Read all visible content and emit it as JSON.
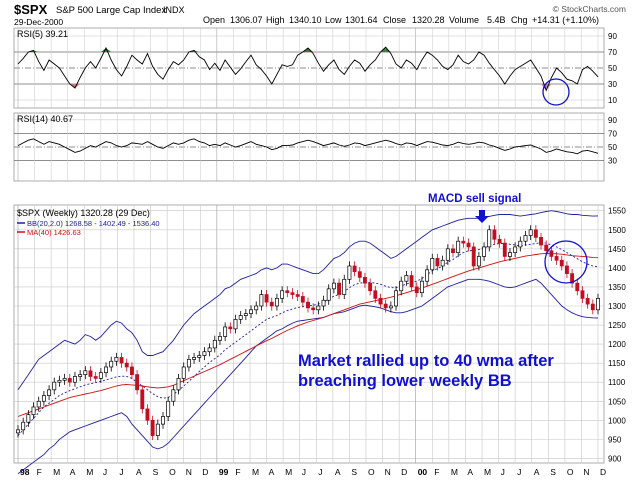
{
  "header": {
    "ticker": "$SPX",
    "name": "S&P 500 Large Cap Index",
    "exchange": "INDX",
    "date": "29-Dec-2000",
    "open_label": "Open",
    "open": "1306.07",
    "high_label": "High",
    "high": "1340.10",
    "low_label": "Low",
    "low": "1301.64",
    "close_label": "Close",
    "close": "1320.28",
    "volume_label": "Volume",
    "volume": "5.4B",
    "chg_label": "Chg",
    "chg": "+14.31 (+1.10%)",
    "brand": "© StockCharts.com"
  },
  "colors": {
    "grid": "#c8c8c8",
    "candle_up": "#000000",
    "candle_down": "#c01020",
    "bb": "#2020a0",
    "ma": "#d01010",
    "rsi_fill_high": "#3a7a3a",
    "rsi_fill_low": "#c08080",
    "annotation": "#1010d0"
  },
  "chart_data": [
    {
      "type": "line",
      "title": "RSI(5) 39.21",
      "y_ticks": [
        10,
        30,
        50,
        70,
        90
      ],
      "ylim": [
        0,
        100
      ],
      "reference_lines": [
        30,
        50,
        70
      ],
      "series": [
        {
          "name": "RSI(5)",
          "values": [
            55,
            62,
            70,
            72,
            58,
            47,
            60,
            55,
            50,
            40,
            30,
            25,
            38,
            50,
            58,
            50,
            62,
            75,
            60,
            48,
            40,
            52,
            66,
            60,
            55,
            68,
            52,
            42,
            36,
            48,
            58,
            54,
            60,
            70,
            72,
            64,
            60,
            48,
            56,
            47,
            60,
            51,
            42,
            49,
            58,
            66,
            54,
            48,
            40,
            30,
            42,
            54,
            52,
            54,
            66,
            70,
            75,
            68,
            56,
            46,
            54,
            60,
            48,
            42,
            52,
            60,
            56,
            46,
            54,
            60,
            70,
            76,
            68,
            55,
            50,
            60,
            56,
            48,
            60,
            70,
            66,
            60,
            52,
            48,
            54,
            66,
            58,
            55,
            60,
            70,
            66,
            56,
            48,
            40,
            30,
            40,
            48,
            52,
            56,
            60,
            50,
            40,
            22,
            38,
            50,
            44,
            36,
            34,
            30,
            48,
            52,
            46,
            39
          ]
        }
      ]
    },
    {
      "type": "line",
      "title": "RSI(14) 40.67",
      "y_ticks": [
        30,
        50,
        70,
        90
      ],
      "ylim": [
        0,
        100
      ],
      "reference_lines": [
        30,
        50,
        70
      ],
      "series": [
        {
          "name": "RSI(14)",
          "values": [
            52,
            56,
            60,
            62,
            58,
            54,
            58,
            56,
            54,
            50,
            46,
            42,
            44,
            48,
            52,
            50,
            54,
            58,
            56,
            52,
            50,
            52,
            56,
            55,
            54,
            58,
            54,
            50,
            48,
            52,
            56,
            54,
            56,
            60,
            62,
            58,
            56,
            52,
            54,
            52,
            56,
            53,
            50,
            52,
            55,
            58,
            54,
            52,
            50,
            46,
            48,
            52,
            52,
            53,
            56,
            58,
            60,
            58,
            55,
            52,
            54,
            56,
            53,
            51,
            53,
            56,
            55,
            52,
            54,
            56,
            58,
            60,
            58,
            55,
            53,
            56,
            55,
            52,
            55,
            58,
            57,
            55,
            53,
            52,
            54,
            57,
            55,
            54,
            55,
            57,
            56,
            53,
            51,
            48,
            45,
            47,
            50,
            51,
            52,
            53,
            50,
            47,
            42,
            44,
            47,
            45,
            43,
            42,
            40,
            44,
            45,
            43,
            40.67
          ]
        }
      ]
    },
    {
      "type": "line",
      "title": "$SPX (Weekly) 1320.28 (29 Dec)",
      "series_labels": [
        {
          "key": "bb",
          "text": "BB(20,2.0) 1268.58 - 1402.49 - 1536.40"
        },
        {
          "key": "ma",
          "text": "MA(40) 1426.63"
        }
      ],
      "y_ticks": [
        900,
        950,
        1000,
        1050,
        1100,
        1150,
        1200,
        1250,
        1300,
        1350,
        1400,
        1450,
        1500,
        1550
      ],
      "ylim": [
        888,
        1565
      ],
      "x_ticks": [
        "98",
        "F",
        "M",
        "A",
        "M",
        "J",
        "J",
        "A",
        "S",
        "O",
        "N",
        "D",
        "99",
        "F",
        "M",
        "A",
        "M",
        "J",
        "J",
        "A",
        "S",
        "O",
        "N",
        "D",
        "00",
        "F",
        "M",
        "A",
        "M",
        "J",
        "J",
        "A",
        "S",
        "O",
        "N",
        "D"
      ],
      "close": [
        975,
        995,
        1015,
        1035,
        1050,
        1065,
        1080,
        1100,
        1105,
        1110,
        1100,
        1115,
        1120,
        1130,
        1115,
        1110,
        1125,
        1140,
        1155,
        1165,
        1150,
        1140,
        1120,
        1080,
        1030,
        1000,
        960,
        990,
        1010,
        1050,
        1080,
        1110,
        1140,
        1160,
        1165,
        1170,
        1180,
        1190,
        1210,
        1220,
        1245,
        1240,
        1265,
        1275,
        1280,
        1290,
        1300,
        1330,
        1310,
        1300,
        1320,
        1340,
        1335,
        1330,
        1325,
        1310,
        1295,
        1290,
        1300,
        1315,
        1345,
        1360,
        1330,
        1370,
        1405,
        1390,
        1375,
        1360,
        1340,
        1320,
        1305,
        1295,
        1300,
        1340,
        1365,
        1380,
        1350,
        1335,
        1365,
        1395,
        1425,
        1405,
        1420,
        1450,
        1440,
        1470,
        1465,
        1455,
        1405,
        1430,
        1455,
        1500,
        1475,
        1465,
        1430,
        1440,
        1455,
        1470,
        1485,
        1500,
        1480,
        1460,
        1445,
        1430,
        1420,
        1405,
        1385,
        1360,
        1340,
        1320,
        1305,
        1290,
        1320
      ],
      "upper": [
        1080,
        1100,
        1120,
        1140,
        1160,
        1170,
        1180,
        1190,
        1200,
        1210,
        1205,
        1200,
        1210,
        1225,
        1220,
        1210,
        1220,
        1235,
        1250,
        1260,
        1255,
        1240,
        1230,
        1210,
        1180,
        1170,
        1170,
        1175,
        1180,
        1195,
        1210,
        1230,
        1250,
        1265,
        1280,
        1290,
        1300,
        1310,
        1320,
        1330,
        1345,
        1350,
        1360,
        1370,
        1375,
        1380,
        1385,
        1395,
        1400,
        1395,
        1400,
        1410,
        1410,
        1405,
        1400,
        1395,
        1390,
        1385,
        1385,
        1395,
        1410,
        1425,
        1430,
        1440,
        1455,
        1465,
        1470,
        1470,
        1465,
        1455,
        1445,
        1435,
        1425,
        1430,
        1440,
        1450,
        1460,
        1470,
        1480,
        1490,
        1500,
        1505,
        1510,
        1515,
        1520,
        1525,
        1528,
        1530,
        1530,
        1530,
        1532,
        1535,
        1538,
        1540,
        1540,
        1540,
        1538,
        1536,
        1538,
        1540,
        1542,
        1545,
        1548,
        1550,
        1548,
        1545,
        1542,
        1540,
        1540,
        1538,
        1537,
        1536,
        1536.4
      ],
      "mid": [
        960,
        975,
        990,
        1005,
        1020,
        1035,
        1045,
        1055,
        1065,
        1072,
        1078,
        1083,
        1088,
        1093,
        1096,
        1099,
        1102,
        1106,
        1110,
        1114,
        1116,
        1115,
        1110,
        1100,
        1090,
        1080,
        1070,
        1062,
        1058,
        1060,
        1068,
        1078,
        1090,
        1102,
        1115,
        1128,
        1140,
        1152,
        1162,
        1172,
        1185,
        1195,
        1205,
        1215,
        1225,
        1235,
        1245,
        1255,
        1265,
        1270,
        1275,
        1282,
        1288,
        1292,
        1296,
        1298,
        1300,
        1302,
        1305,
        1310,
        1318,
        1326,
        1330,
        1338,
        1348,
        1356,
        1360,
        1362,
        1362,
        1360,
        1357,
        1352,
        1348,
        1348,
        1352,
        1358,
        1362,
        1365,
        1372,
        1382,
        1392,
        1398,
        1405,
        1415,
        1422,
        1432,
        1440,
        1445,
        1446,
        1448,
        1452,
        1458,
        1462,
        1464,
        1464,
        1462,
        1460,
        1458,
        1460,
        1462,
        1464,
        1466,
        1465,
        1460,
        1455,
        1448,
        1440,
        1432,
        1424,
        1416,
        1410,
        1405,
        1402.49
      ],
      "lower": [
        860,
        870,
        880,
        890,
        900,
        910,
        925,
        935,
        950,
        960,
        970,
        975,
        980,
        985,
        990,
        995,
        1000,
        1005,
        1010,
        1015,
        1020,
        1010,
        990,
        975,
        960,
        945,
        930,
        925,
        930,
        940,
        955,
        970,
        985,
        1000,
        1015,
        1030,
        1045,
        1060,
        1075,
        1090,
        1105,
        1120,
        1135,
        1150,
        1165,
        1180,
        1195,
        1205,
        1215,
        1225,
        1235,
        1240,
        1248,
        1255,
        1260,
        1262,
        1264,
        1266,
        1268,
        1270,
        1275,
        1280,
        1282,
        1285,
        1290,
        1295,
        1300,
        1302,
        1300,
        1298,
        1295,
        1290,
        1285,
        1282,
        1282,
        1285,
        1290,
        1295,
        1300,
        1310,
        1320,
        1330,
        1340,
        1350,
        1355,
        1360,
        1365,
        1370,
        1370,
        1370,
        1368,
        1365,
        1360,
        1355,
        1350,
        1348,
        1350,
        1355,
        1360,
        1365,
        1370,
        1360,
        1345,
        1330,
        1315,
        1300,
        1290,
        1282,
        1276,
        1272,
        1270,
        1269,
        1268.58
      ],
      "ma": [
        1010,
        1015,
        1020,
        1025,
        1030,
        1035,
        1040,
        1045,
        1050,
        1055,
        1060,
        1063,
        1066,
        1069,
        1072,
        1075,
        1078,
        1082,
        1086,
        1090,
        1093,
        1094,
        1093,
        1092,
        1090,
        1088,
        1086,
        1085,
        1086,
        1088,
        1092,
        1098,
        1104,
        1110,
        1116,
        1122,
        1128,
        1134,
        1140,
        1146,
        1153,
        1160,
        1167,
        1174,
        1181,
        1188,
        1195,
        1202,
        1209,
        1215,
        1222,
        1229,
        1236,
        1242,
        1248,
        1253,
        1258,
        1262,
        1266,
        1270,
        1275,
        1280,
        1285,
        1290,
        1295,
        1300,
        1305,
        1308,
        1311,
        1314,
        1317,
        1320,
        1323,
        1327,
        1331,
        1335,
        1339,
        1343,
        1347,
        1352,
        1357,
        1362,
        1367,
        1372,
        1377,
        1382,
        1387,
        1392,
        1396,
        1400,
        1404,
        1408,
        1412,
        1416,
        1419,
        1422,
        1425,
        1428,
        1431,
        1433,
        1435,
        1437,
        1438,
        1438,
        1437,
        1436,
        1434,
        1432,
        1431,
        1430,
        1429,
        1427,
        1426.63
      ],
      "annotations": [
        "MACD sell signal",
        "Market rallied up to 40 wma after",
        "breaching lower weekly BB"
      ]
    }
  ]
}
